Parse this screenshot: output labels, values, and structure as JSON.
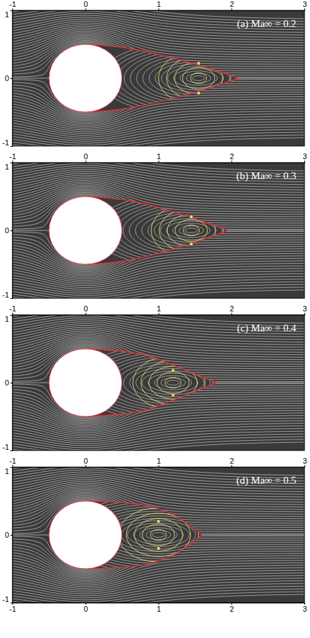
{
  "chart_data": [
    {
      "type": "streamline",
      "title": "(a) Ma∞ = 0.2",
      "xlim": [
        -1,
        3
      ],
      "ylim": [
        -1,
        1
      ],
      "xticks": [
        -1,
        0,
        1,
        2,
        3
      ],
      "yticks": [
        -1,
        0,
        1
      ],
      "cylinder": {
        "x": 0,
        "y": 0,
        "diameter": 1
      },
      "series": [
        {
          "color": "#d8343c",
          "x": [
            0.05,
            0.3,
            0.6,
            1.0,
            1.4,
            1.8,
            2.1
          ],
          "values": [
            0.5,
            0.48,
            0.44,
            0.35,
            0.24,
            0.11,
            0
          ]
        },
        {
          "color": "#d8343c",
          "x": [
            0.05,
            0.3,
            0.6,
            1.0,
            1.4,
            1.8,
            2.1
          ],
          "values": [
            -0.5,
            -0.48,
            -0.44,
            -0.35,
            -0.24,
            -0.11,
            0
          ]
        }
      ],
      "vortex_centers": {
        "x": [
          1.55,
          1.55
        ],
        "y": [
          0.22,
          -0.22
        ]
      }
    },
    {
      "type": "streamline",
      "title": "(b) Ma∞ = 0.3",
      "xlim": [
        -1,
        3
      ],
      "ylim": [
        -1,
        1
      ],
      "xticks": [
        -1,
        0,
        1,
        2,
        3
      ],
      "yticks": [
        -1,
        0,
        1
      ],
      "cylinder": {
        "x": 0,
        "y": 0,
        "diameter": 1
      },
      "series": [
        {
          "color": "#d8343c",
          "x": [
            0.05,
            0.3,
            0.6,
            1.0,
            1.4,
            1.7,
            1.95
          ],
          "values": [
            0.5,
            0.48,
            0.44,
            0.34,
            0.21,
            0.1,
            0
          ]
        },
        {
          "color": "#d8343c",
          "x": [
            0.05,
            0.3,
            0.6,
            1.0,
            1.4,
            1.7,
            1.95
          ],
          "values": [
            -0.5,
            -0.48,
            -0.44,
            -0.34,
            -0.21,
            -0.1,
            0
          ]
        }
      ],
      "vortex_centers": {
        "x": [
          1.45,
          1.45
        ],
        "y": [
          0.2,
          -0.2
        ]
      }
    },
    {
      "type": "streamline",
      "title": "(c) Ma∞ = 0.4",
      "xlim": [
        -1,
        3
      ],
      "ylim": [
        -1,
        1
      ],
      "xticks": [
        -1,
        0,
        1,
        2,
        3
      ],
      "yticks": [
        -1,
        0,
        1
      ],
      "cylinder": {
        "x": 0,
        "y": 0,
        "diameter": 1
      },
      "series": [
        {
          "color": "#d8343c",
          "x": [
            0.05,
            0.3,
            0.6,
            0.9,
            1.2,
            1.5,
            1.8
          ],
          "values": [
            0.5,
            0.48,
            0.45,
            0.38,
            0.26,
            0.13,
            0
          ]
        },
        {
          "color": "#d8343c",
          "x": [
            0.05,
            0.3,
            0.6,
            0.9,
            1.2,
            1.5,
            1.8
          ],
          "values": [
            -0.5,
            -0.48,
            -0.45,
            -0.38,
            -0.26,
            -0.13,
            0
          ]
        }
      ],
      "vortex_centers": {
        "x": [
          1.2,
          1.2
        ],
        "y": [
          0.18,
          -0.18
        ]
      }
    },
    {
      "type": "streamline",
      "title": "(d) Ma∞ = 0.5",
      "xlim": [
        -1,
        3
      ],
      "ylim": [
        -1,
        1
      ],
      "xticks": [
        -1,
        0,
        1,
        2,
        3
      ],
      "yticks": [
        -1,
        0,
        1
      ],
      "cylinder": {
        "x": 0,
        "y": 0,
        "diameter": 1
      },
      "series": [
        {
          "color": "#d8343c",
          "x": [
            0.05,
            0.3,
            0.6,
            0.9,
            1.2,
            1.4,
            1.6
          ],
          "values": [
            0.5,
            0.49,
            0.47,
            0.42,
            0.3,
            0.16,
            0
          ]
        },
        {
          "color": "#d8343c",
          "x": [
            0.05,
            0.3,
            0.6,
            0.9,
            1.2,
            1.4,
            1.6
          ],
          "values": [
            -0.5,
            -0.49,
            -0.47,
            -0.42,
            -0.3,
            -0.16,
            0
          ]
        }
      ],
      "vortex_centers": {
        "x": [
          1.0,
          1.0
        ],
        "y": [
          0.2,
          -0.2
        ]
      }
    }
  ]
}
